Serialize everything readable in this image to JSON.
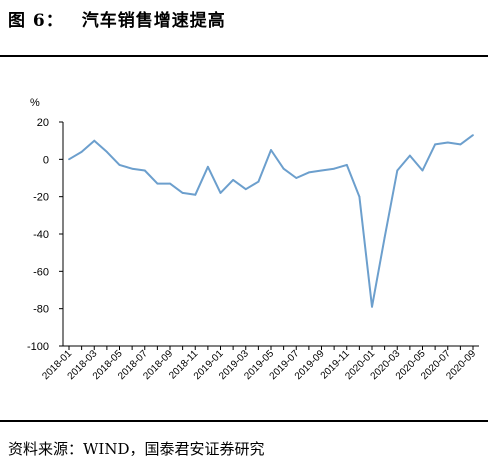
{
  "figure": {
    "label": "图 6：",
    "title": "汽车销售增速提高"
  },
  "source": "资料来源：WIND，国泰君安证券研究",
  "chart_data": {
    "type": "line",
    "title": "",
    "xlabel": "",
    "ylabel": "%",
    "ylim": [
      -100,
      20
    ],
    "yticks": [
      20,
      0,
      -20,
      -40,
      -60,
      -80,
      -100
    ],
    "grid": false,
    "line_color": "#6C9FCD",
    "x_tick_labels": [
      "2018-01",
      "2018-03",
      "2018-05",
      "2018-07",
      "2018-09",
      "2018-11",
      "2019-01",
      "2019-03",
      "2019-05",
      "2019-07",
      "2019-09",
      "2019-11",
      "2020-01",
      "2020-03",
      "2020-05",
      "2020-07",
      "2020-09"
    ],
    "x": [
      "2018-01",
      "2018-02",
      "2018-03",
      "2018-04",
      "2018-05",
      "2018-06",
      "2018-07",
      "2018-08",
      "2018-09",
      "2018-10",
      "2018-11",
      "2018-12",
      "2019-01",
      "2019-02",
      "2019-03",
      "2019-04",
      "2019-05",
      "2019-06",
      "2019-07",
      "2019-08",
      "2019-09",
      "2019-10",
      "2019-11",
      "2019-12",
      "2020-01",
      "2020-02",
      "2020-03",
      "2020-04",
      "2020-05",
      "2020-06",
      "2020-07",
      "2020-08",
      "2020-09"
    ],
    "series": [
      {
        "values": [
          0,
          4,
          10,
          4,
          -3,
          -5,
          -6,
          -13,
          -13,
          -18,
          -19,
          -4,
          -18,
          -11,
          -16,
          -12,
          5,
          -5,
          -10,
          -7,
          -6,
          -5,
          -3,
          -20,
          -79,
          -42,
          -6,
          2,
          -6,
          8,
          9,
          8,
          13
        ]
      }
    ]
  }
}
